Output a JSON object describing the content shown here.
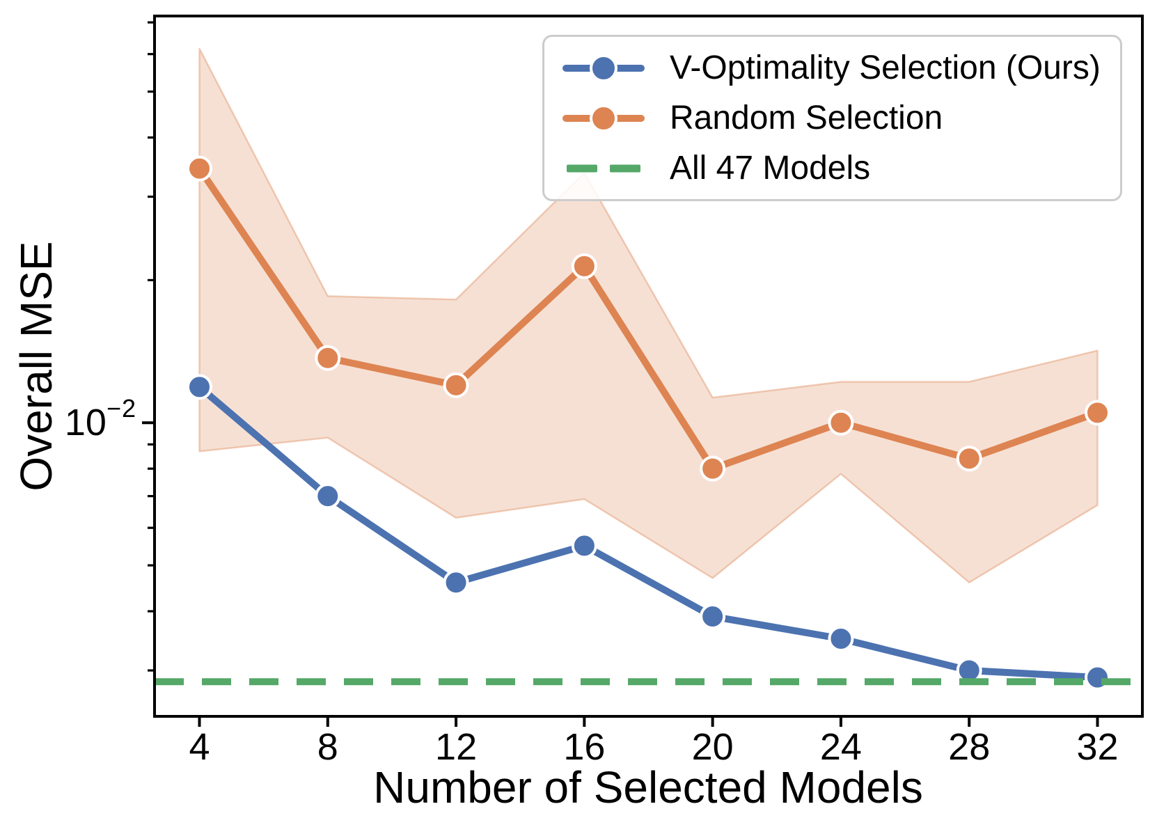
{
  "figure_background": "#ffffff",
  "axes": {
    "xlabel": "Number of Selected Models",
    "ylabel": "Overall MSE",
    "y_major_tick": {
      "base": "10",
      "exponent": "−2"
    }
  },
  "legend": {
    "border_color": "#cccccc",
    "entries": [
      {
        "label": "V-Optimality Selection (Ours)",
        "color": "#4C72B0",
        "kind": "line-marker"
      },
      {
        "label": "Random Selection",
        "color": "#DD8452",
        "kind": "line-marker"
      },
      {
        "label": "All 47 Models",
        "color": "#55A868",
        "kind": "dashed"
      }
    ]
  },
  "chart_data": {
    "type": "line",
    "title": "",
    "xlabel": "Number of Selected Models",
    "ylabel": "Overall MSE",
    "yscale": "log",
    "grid": false,
    "legend_position": "upper right",
    "xlim": [
      2.6,
      33.4
    ],
    "ylim": [
      0.0024,
      0.0722
    ],
    "x": [
      4,
      8,
      12,
      16,
      20,
      24,
      28,
      32
    ],
    "x_tick_labels": [
      "4",
      "8",
      "12",
      "16",
      "20",
      "24",
      "28",
      "32"
    ],
    "y_major_ticks": [
      0.01
    ],
    "y_minor_ticks": [
      0.003,
      0.004,
      0.005,
      0.006,
      0.007,
      0.008,
      0.009,
      0.02,
      0.03,
      0.04,
      0.05,
      0.06,
      0.07
    ],
    "series": [
      {
        "name": "V-Optimality Selection (Ours)",
        "color": "#4C72B0",
        "style": "solid",
        "marker": "circle",
        "values": [
          0.0119,
          0.007,
          0.0046,
          0.0055,
          0.0039,
          0.0035,
          0.003,
          0.0029
        ]
      },
      {
        "name": "Random Selection",
        "color": "#DD8452",
        "style": "solid",
        "marker": "circle",
        "values": [
          0.0344,
          0.0137,
          0.012,
          0.0214,
          0.008,
          0.01,
          0.0084,
          0.0105
        ],
        "band_upper": [
          0.0616,
          0.0185,
          0.0182,
          0.0337,
          0.0113,
          0.0122,
          0.0122,
          0.0142
        ],
        "band_lower": [
          0.0087,
          0.0093,
          0.0063,
          0.0069,
          0.0047,
          0.0078,
          0.0046,
          0.0067
        ],
        "band_fill_opacity": 0.25
      },
      {
        "name": "All 47 Models",
        "color": "#55A868",
        "style": "dashed-horizontal",
        "value": 0.00284
      }
    ]
  }
}
